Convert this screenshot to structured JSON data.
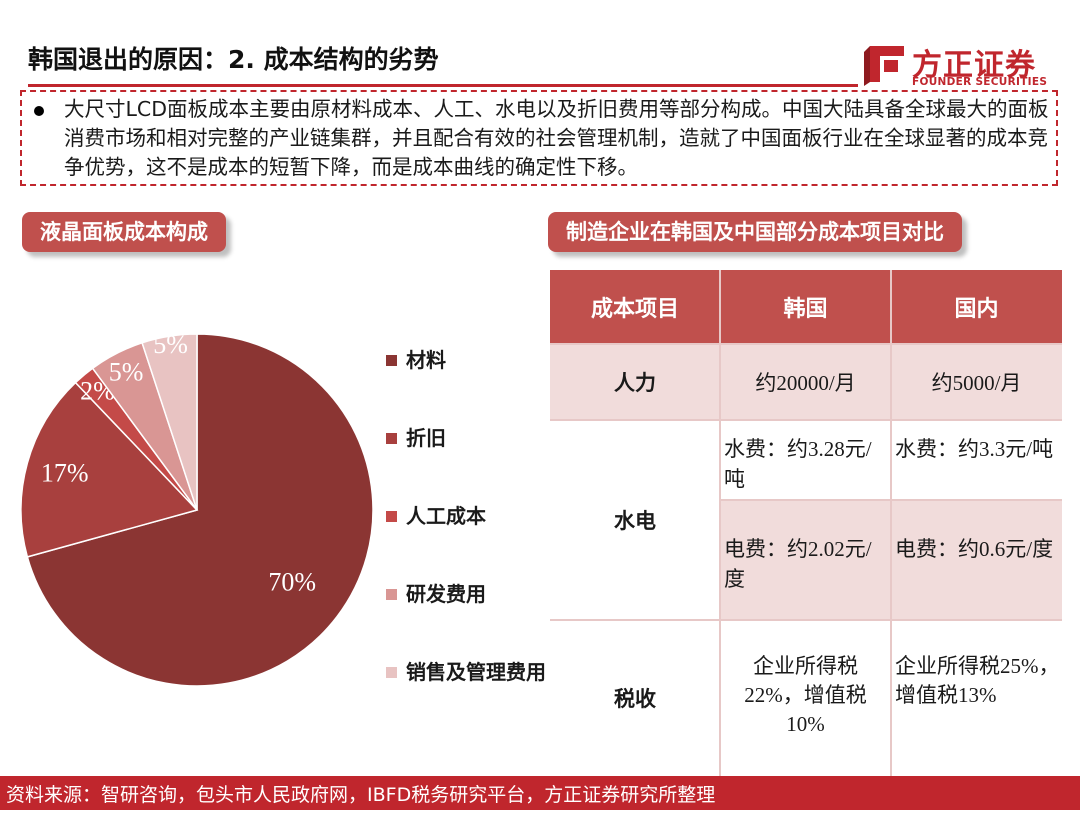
{
  "header": {
    "title": "韩国退出的原因：2. 成本结构的劣势",
    "logo_cn": "方正证券",
    "logo_en": "FOUNDER SECURITIES"
  },
  "summary": {
    "text": "大尺寸LCD面板成本主要由原材料成本、人工、水电以及折旧费用等部分构成。中国大陆具备全球最大的面板消费市场和相对完整的产业链集群，并且配合有效的社会管理机制，造就了中国面板行业在全球显著的成本竞争优势，这不是成本的短暂下降，而是成本曲线的确定性下移。"
  },
  "left_section": {
    "title": "液晶面板成本构成"
  },
  "right_section": {
    "title": "制造企业在韩国及中国部分成本项目对比"
  },
  "chart_data": {
    "type": "pie",
    "categories": [
      "材料",
      "折旧",
      "人工成本",
      "研发费用",
      "销售及管理费用"
    ],
    "values": [
      70,
      17,
      2,
      5,
      5
    ],
    "labels": [
      "70%",
      "17%",
      "2%",
      "5%",
      "5%"
    ],
    "colors": [
      "#8b3533",
      "#a8403e",
      "#c44a48",
      "#d99694",
      "#e8c3c2"
    ],
    "legend": "right"
  },
  "table": {
    "headers": [
      "成本项目",
      "韩国",
      "国内"
    ],
    "labor": {
      "label": "人力",
      "korea": "约20000/月",
      "china": "约5000/月"
    },
    "utility": {
      "label": "水电",
      "water_korea": "水费：约3.28元/吨",
      "water_china": "水费：约3.3元/吨",
      "power_korea": "电费：约2.02元/度",
      "power_china": "电费：约0.6元/度"
    },
    "tax": {
      "label": "税收",
      "korea": "企业所得税22%，增值税10%",
      "china": "企业所得税25%，增值税13%"
    }
  },
  "footer": {
    "source": "资料来源：智研咨询，包头市人民政府网，IBFD税务研究平台，方正证券研究所整理"
  }
}
